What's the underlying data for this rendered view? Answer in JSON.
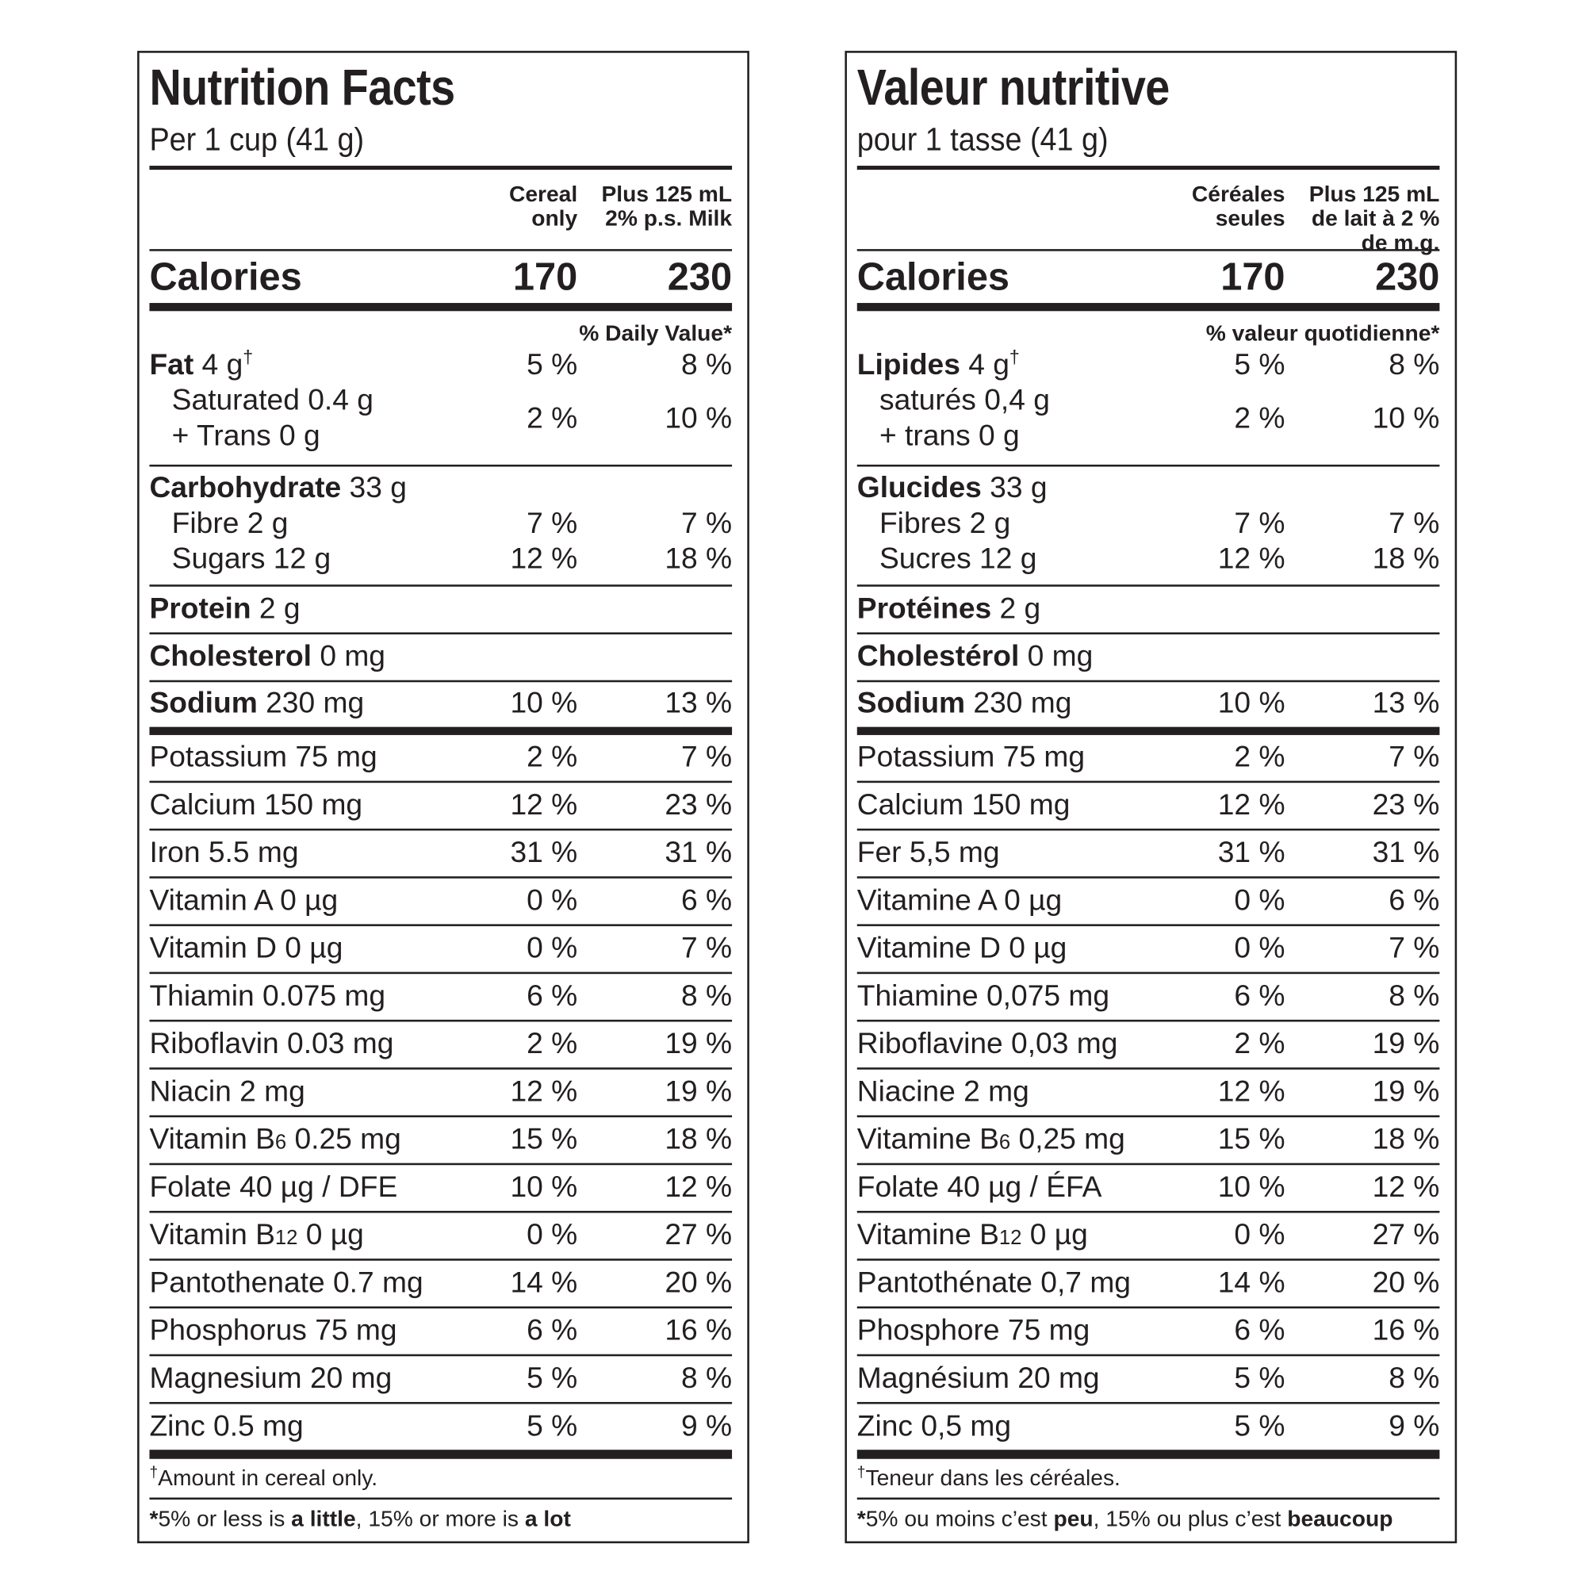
{
  "panels": [
    {
      "id": "english",
      "title": "Nutrition Facts",
      "serving": "Per 1 cup (41 g)",
      "col_headers": [
        [
          "Cereal",
          "only"
        ],
        [
          "Plus 125 mL",
          "2% p.s. Milk"
        ]
      ],
      "calories_label": "Calories",
      "calories": [
        "170",
        "230"
      ],
      "dv_header": "% Daily Value*",
      "sections": [
        {
          "rows": [
            {
              "name": "Fat",
              "amount": " 4 g",
              "sup": "†",
              "dv": [
                "5 %",
                "8 %"
              ]
            },
            {
              "lines": [
                "Saturated 0.4 g",
                "+ Trans 0 g"
              ],
              "indent": true,
              "dv": [
                "2 %",
                "10 %"
              ]
            }
          ]
        },
        {
          "rows": [
            {
              "name": "Carbohydrate",
              "amount": " 33 g",
              "dv": [
                "",
                ""
              ]
            },
            {
              "text": "Fibre 2 g",
              "indent": true,
              "dv": [
                "7 %",
                "7 %"
              ]
            },
            {
              "text": "Sugars 12 g",
              "indent": true,
              "dv": [
                "12 %",
                "18 %"
              ]
            }
          ]
        },
        {
          "rows": [
            {
              "name": "Protein",
              "amount": " 2 g",
              "dv": [
                "",
                ""
              ]
            }
          ]
        },
        {
          "rows": [
            {
              "name": "Cholesterol",
              "amount": " 0 mg",
              "dv": [
                "",
                ""
              ]
            }
          ]
        },
        {
          "rows": [
            {
              "name": "Sodium",
              "amount": " 230 mg",
              "dv": [
                "10 %",
                "13 %"
              ]
            }
          ]
        }
      ],
      "minerals": [
        {
          "label": "Potassium 75 mg",
          "dv": [
            "2 %",
            "7 %"
          ]
        },
        {
          "label": "Calcium 150 mg",
          "dv": [
            "12 %",
            "23 %"
          ]
        },
        {
          "label": "Iron 5.5 mg",
          "dv": [
            "31 %",
            "31 %"
          ]
        },
        {
          "label": "Vitamin A 0 µg",
          "dv": [
            "0 %",
            "6 %"
          ]
        },
        {
          "label": "Vitamin D 0 µg",
          "dv": [
            "0 %",
            "7 %"
          ]
        },
        {
          "label": "Thiamin 0.075 mg",
          "dv": [
            "6 %",
            "8 %"
          ]
        },
        {
          "label": "Riboflavin 0.03 mg",
          "dv": [
            "2 %",
            "19 %"
          ]
        },
        {
          "label": "Niacin 2 mg",
          "dv": [
            "12 %",
            "19 %"
          ]
        },
        {
          "label": "Vitamin B",
          "sub": "6",
          "after": " 0.25 mg",
          "dv": [
            "15 %",
            "18 %"
          ]
        },
        {
          "label": "Folate 40 µg / DFE",
          "dv": [
            "10 %",
            "12 %"
          ]
        },
        {
          "label": "Vitamin B",
          "sub": "12",
          "after": " 0 µg",
          "dv": [
            "0 %",
            "27 %"
          ]
        },
        {
          "label": "Pantothenate 0.7 mg",
          "dv": [
            "14 %",
            "20 %"
          ]
        },
        {
          "label": "Phosphorus 75 mg",
          "dv": [
            "6 %",
            "16 %"
          ]
        },
        {
          "label": "Magnesium 20 mg",
          "dv": [
            "5 %",
            "8 %"
          ]
        },
        {
          "label": "Zinc 0.5 mg",
          "dv": [
            "5 %",
            "9 %"
          ]
        }
      ],
      "footnote": {
        "mark": "†",
        "text": "Amount in cereal only."
      },
      "footer": [
        {
          "text": "*",
          "bold": true
        },
        {
          "text": "5% or less is ",
          "bold": false
        },
        {
          "text": "a little",
          "bold": true
        },
        {
          "text": ", 15% or more is ",
          "bold": false
        },
        {
          "text": "a lot",
          "bold": true
        }
      ]
    },
    {
      "id": "french",
      "title": "Valeur nutritive",
      "serving": "pour 1 tasse (41 g)",
      "col_headers": [
        [
          "Céréales",
          "seules"
        ],
        [
          "Plus 125 mL",
          "de lait à 2 %",
          "de m.g."
        ]
      ],
      "calories_label": "Calories",
      "calories": [
        "170",
        "230"
      ],
      "dv_header": "% valeur quotidienne*",
      "sections": [
        {
          "rows": [
            {
              "name": "Lipides",
              "amount": " 4 g",
              "sup": "†",
              "dv": [
                "5 %",
                "8 %"
              ]
            },
            {
              "lines": [
                "saturés 0,4 g",
                "+ trans 0 g"
              ],
              "indent": true,
              "dv": [
                "2 %",
                "10 %"
              ]
            }
          ]
        },
        {
          "rows": [
            {
              "name": "Glucides",
              "amount": " 33 g",
              "dv": [
                "",
                ""
              ]
            },
            {
              "text": "Fibres 2 g",
              "indent": true,
              "dv": [
                "7 %",
                "7 %"
              ]
            },
            {
              "text": "Sucres 12 g",
              "indent": true,
              "dv": [
                "12 %",
                "18 %"
              ]
            }
          ]
        },
        {
          "rows": [
            {
              "name": "Protéines",
              "amount": " 2 g",
              "dv": [
                "",
                ""
              ]
            }
          ]
        },
        {
          "rows": [
            {
              "name": "Cholestérol",
              "amount": " 0 mg",
              "dv": [
                "",
                ""
              ]
            }
          ]
        },
        {
          "rows": [
            {
              "name": "Sodium",
              "amount": " 230 mg",
              "dv": [
                "10 %",
                "13 %"
              ]
            }
          ]
        }
      ],
      "minerals": [
        {
          "label": "Potassium 75 mg",
          "dv": [
            "2 %",
            "7 %"
          ]
        },
        {
          "label": "Calcium 150 mg",
          "dv": [
            "12 %",
            "23 %"
          ]
        },
        {
          "label": "Fer 5,5 mg",
          "dv": [
            "31 %",
            "31 %"
          ]
        },
        {
          "label": "Vitamine A 0 µg",
          "dv": [
            "0 %",
            "6 %"
          ]
        },
        {
          "label": "Vitamine D 0 µg",
          "dv": [
            "0 %",
            "7 %"
          ]
        },
        {
          "label": "Thiamine 0,075 mg",
          "dv": [
            "6 %",
            "8 %"
          ]
        },
        {
          "label": "Riboflavine 0,03 mg",
          "dv": [
            "2 %",
            "19 %"
          ]
        },
        {
          "label": "Niacine 2 mg",
          "dv": [
            "12 %",
            "19 %"
          ]
        },
        {
          "label": "Vitamine B",
          "sub": "6",
          "after": " 0,25 mg",
          "dv": [
            "15 %",
            "18 %"
          ]
        },
        {
          "label": "Folate 40 µg / ÉFA",
          "dv": [
            "10 %",
            "12 %"
          ]
        },
        {
          "label": "Vitamine B",
          "sub": "12",
          "after": " 0 µg",
          "dv": [
            "0 %",
            "27 %"
          ]
        },
        {
          "label": "Pantothénate 0,7 mg",
          "dv": [
            "14 %",
            "20 %"
          ]
        },
        {
          "label": "Phosphore 75 mg",
          "dv": [
            "6 %",
            "16 %"
          ]
        },
        {
          "label": "Magnésium 20 mg",
          "dv": [
            "5 %",
            "8 %"
          ]
        },
        {
          "label": "Zinc 0,5 mg",
          "dv": [
            "5 %",
            "9 %"
          ]
        }
      ],
      "footnote": {
        "mark": "†",
        "text": "Teneur dans les céréales."
      },
      "footer": [
        {
          "text": "*",
          "bold": true
        },
        {
          "text": "5% ou moins c’est ",
          "bold": false
        },
        {
          "text": "peu",
          "bold": true
        },
        {
          "text": ", 15% ou plus c’est ",
          "bold": false
        },
        {
          "text": "beaucoup",
          "bold": true
        }
      ]
    }
  ]
}
